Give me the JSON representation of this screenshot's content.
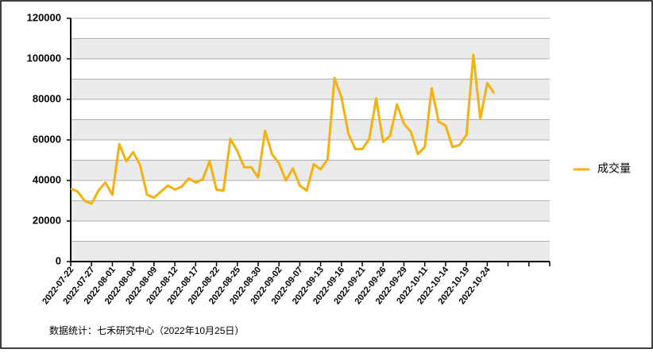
{
  "chart_data": {
    "type": "line",
    "categories": [
      "2022-07-22",
      null,
      null,
      "2022-07-27",
      null,
      null,
      "2022-08-01",
      null,
      null,
      "2022-08-04",
      null,
      null,
      "2022-08-09",
      null,
      null,
      "2022-08-12",
      null,
      null,
      "2022-08-17",
      null,
      null,
      "2022-08-22",
      null,
      null,
      "2022-08-25",
      null,
      null,
      "2022-08-30",
      null,
      null,
      "2022-09-02",
      null,
      null,
      "2022-09-07",
      null,
      null,
      "2022-09-13",
      null,
      null,
      "2022-09-16",
      null,
      null,
      "2022-09-21",
      null,
      null,
      "2022-09-26",
      null,
      null,
      "2022-09-29",
      null,
      null,
      "2022-10-11",
      null,
      null,
      "2022-10-14",
      null,
      null,
      "2022-10-19",
      null,
      null,
      "2022-10-24",
      null,
      null,
      null,
      null,
      null,
      null,
      null,
      null,
      null
    ],
    "series": [
      {
        "name": "成交量",
        "color": "#f5b10f",
        "values": [
          36000,
          34500,
          30000,
          28500,
          35000,
          39000,
          33000,
          58000,
          49500,
          54000,
          47500,
          33000,
          31500,
          34500,
          37500,
          35500,
          37000,
          41000,
          39000,
          40500,
          49500,
          35500,
          35000,
          60500,
          54500,
          46500,
          46500,
          41500,
          64500,
          53000,
          48500,
          40000,
          46000,
          37500,
          35000,
          48000,
          45500,
          50500,
          90500,
          81000,
          63000,
          55500,
          55500,
          60500,
          80500,
          59000,
          62000,
          77500,
          68000,
          64000,
          53000,
          56500,
          85500,
          69000,
          67000,
          56500,
          57500,
          62500,
          102000,
          70500,
          88000,
          83000,
          null,
          null,
          null,
          null,
          null,
          null,
          null,
          null
        ]
      }
    ],
    "ylim": [
      0,
      120000
    ],
    "yticks": [
      0,
      20000,
      40000,
      60000,
      80000,
      100000,
      120000
    ],
    "grid": true,
    "legend": "right",
    "source": "数据统计：七禾研究中心（2022年10月25日）"
  }
}
